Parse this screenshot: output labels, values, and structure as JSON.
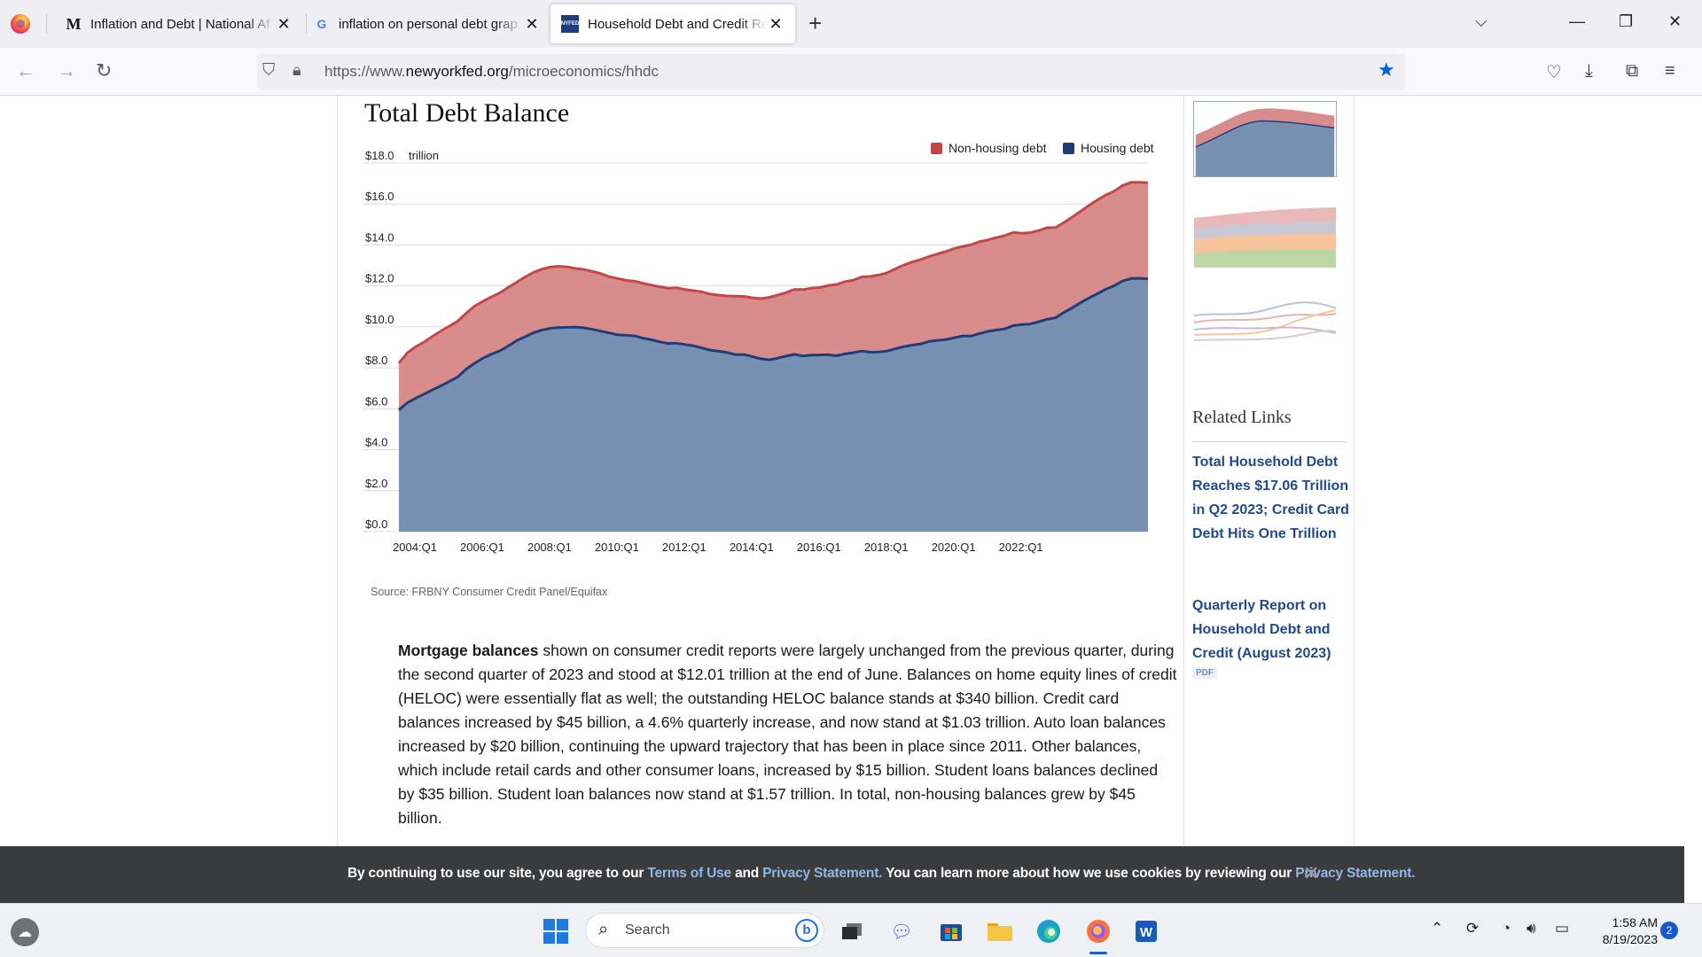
{
  "browser": {
    "tabs": [
      {
        "title": "Inflation and Debt | National Af",
        "favicon": "M"
      },
      {
        "title": "inflation on personal debt grap",
        "favicon": "G"
      },
      {
        "title": "Household Debt and Credit Rep",
        "favicon": "NYFED"
      }
    ],
    "url_prefix": "https://www.",
    "url_domain": "newyorkfed.org",
    "url_path": "/microeconomics/hhdc"
  },
  "page": {
    "chart_heading": "Total Debt Balance",
    "source": "Source: FRBNY Consumer Credit Panel/Equifax",
    "paragraph_bold": "Mortgage balances",
    "paragraph_text": " shown on consumer credit reports were largely unchanged from the previous quarter, during the second quarter of 2023 and stood at $12.01 trillion at the end of June. Balances on home equity lines of credit (HELOC) were essentially flat as well; the outstanding HELOC balance stands at $340 billion. Credit card balances increased by $45 billion, a 4.6% quarterly increase, and now stand at $1.03 trillion. Auto loan balances increased by $20 billion, continuing the upward trajectory that has been in place since 2011. Other balances, which include retail cards and other consumer loans, increased by $15 billion. Student loans balances declined by $35 billion. Student loan balances now stand at $1.57 trillion. In total, non-housing balances grew by $45 billion."
  },
  "sidebar": {
    "related_title": "Related Links",
    "link1": "Total Household Debt Reaches $17.06 Trillion in Q2 2023; Credit Card Debt Hits One Trillion",
    "link2": "Quarterly Report on Household Debt and Credit (August 2023)",
    "pdf_badge": "PDF"
  },
  "cookie": {
    "t1": "By continuing to use our site, you agree to our ",
    "l1": "Terms of Use",
    "t2": " and ",
    "l2": "Privacy Statement.",
    "t3": " You can learn more about how we use cookies by reviewing our ",
    "l3": "Privacy Statement."
  },
  "taskbar": {
    "search_placeholder": "Search",
    "time": "1:58 AM",
    "date": "8/19/2023",
    "notifications": "2"
  },
  "colors": {
    "housing_fill": "#7890b2",
    "housing_line": "#1f3d78",
    "nonhousing_fill": "#d98c8c",
    "nonhousing_line": "#c24848"
  },
  "chart_data": {
    "type": "area",
    "title": "Total Debt Balance",
    "ylabel": "trillion",
    "ylim": [
      0,
      18
    ],
    "yticks": [
      "$0.0",
      "$2.0",
      "$4.0",
      "$6.0",
      "$8.0",
      "$10.0",
      "$12.0",
      "$14.0",
      "$16.0",
      "$18.0"
    ],
    "xticks": [
      "2004:Q1",
      "2006:Q1",
      "2008:Q1",
      "2010:Q1",
      "2012:Q1",
      "2014:Q1",
      "2016:Q1",
      "2018:Q1",
      "2020:Q1",
      "2022:Q1"
    ],
    "legend": [
      "Non-housing debt",
      "Housing debt"
    ],
    "legend_position": "top-right",
    "stacked": true,
    "x_start": "2003:Q1",
    "series": [
      {
        "name": "Housing debt",
        "values": [
          5.94,
          6.29,
          6.52,
          6.72,
          6.93,
          7.12,
          7.34,
          7.56,
          7.94,
          8.22,
          8.47,
          8.67,
          8.83,
          9.07,
          9.33,
          9.52,
          9.72,
          9.85,
          9.93,
          9.97,
          9.98,
          9.99,
          9.95,
          9.88,
          9.79,
          9.7,
          9.61,
          9.59,
          9.56,
          9.45,
          9.37,
          9.27,
          9.19,
          9.2,
          9.14,
          9.08,
          8.97,
          8.86,
          8.81,
          8.75,
          8.64,
          8.65,
          8.55,
          8.44,
          8.39,
          8.47,
          8.57,
          8.66,
          8.58,
          8.62,
          8.63,
          8.64,
          8.59,
          8.68,
          8.74,
          8.82,
          8.76,
          8.77,
          8.82,
          8.93,
          9.04,
          9.11,
          9.17,
          9.29,
          9.34,
          9.38,
          9.47,
          9.56,
          9.55,
          9.68,
          9.78,
          9.85,
          9.9,
          10.06,
          10.11,
          10.14,
          10.25,
          10.37,
          10.44,
          10.7,
          10.93,
          11.18,
          11.41,
          11.62,
          11.84,
          12.01,
          12.24,
          12.36,
          12.37,
          12.35
        ]
      },
      {
        "name": "Non-housing debt",
        "values": [
          2.29,
          2.44,
          2.51,
          2.54,
          2.61,
          2.68,
          2.7,
          2.72,
          2.73,
          2.79,
          2.78,
          2.79,
          2.83,
          2.86,
          2.85,
          2.92,
          2.94,
          2.97,
          2.99,
          2.99,
          2.95,
          2.86,
          2.85,
          2.83,
          2.81,
          2.75,
          2.75,
          2.68,
          2.67,
          2.68,
          2.67,
          2.69,
          2.7,
          2.71,
          2.68,
          2.69,
          2.74,
          2.74,
          2.74,
          2.76,
          2.86,
          2.84,
          2.87,
          2.94,
          3.05,
          3.08,
          3.1,
          3.17,
          3.24,
          3.27,
          3.29,
          3.38,
          3.48,
          3.53,
          3.54,
          3.62,
          3.7,
          3.76,
          3.82,
          3.91,
          3.98,
          4.06,
          4.12,
          4.15,
          4.22,
          4.3,
          4.36,
          4.37,
          4.46,
          4.48,
          4.47,
          4.51,
          4.56,
          4.55,
          4.46,
          4.46,
          4.45,
          4.47,
          4.41,
          4.39,
          4.43,
          4.46,
          4.52,
          4.58,
          4.6,
          4.62,
          4.66,
          4.7,
          4.69,
          4.69
        ]
      }
    ]
  }
}
